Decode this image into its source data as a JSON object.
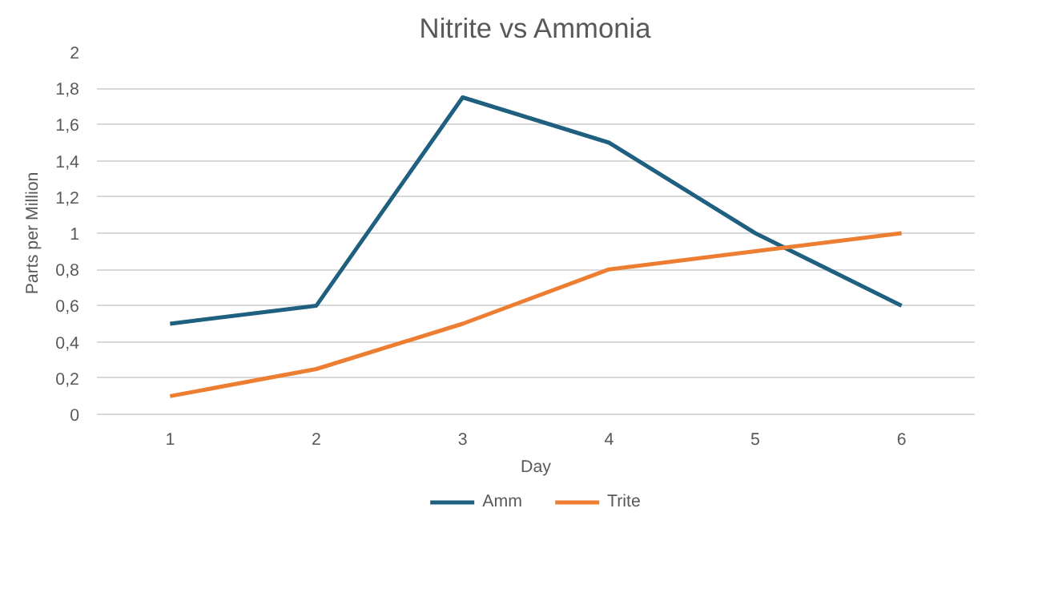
{
  "chart_data": {
    "type": "line",
    "title": "Nitrite vs Ammonia",
    "xlabel": "Day",
    "ylabel": "Parts per Million",
    "categories": [
      "1",
      "2",
      "3",
      "4",
      "5",
      "6"
    ],
    "series": [
      {
        "name": "Amm",
        "color": "#1f5f7f",
        "values": [
          0.5,
          0.6,
          1.75,
          1.5,
          1.0,
          0.6
        ]
      },
      {
        "name": "Trite",
        "color": "#ed7d31",
        "values": [
          0.1,
          0.25,
          0.5,
          0.8,
          0.9,
          1.0
        ]
      }
    ],
    "ylim": [
      0,
      2
    ],
    "yticks": [
      0,
      {
        "value": 0.2,
        "label": "0,2"
      },
      {
        "value": 0.4,
        "label": "0,4"
      },
      {
        "value": 0.6,
        "label": "0,6"
      },
      {
        "value": 0.8,
        "label": "0,8"
      },
      1,
      {
        "value": 1.2,
        "label": "1,2"
      },
      {
        "value": 1.4,
        "label": "1,4"
      },
      {
        "value": 1.6,
        "label": "1,6"
      },
      {
        "value": 1.8,
        "label": "1,8"
      },
      2
    ],
    "grid": "y",
    "legend": "bottom",
    "marker": "none",
    "line_style": "solid"
  }
}
